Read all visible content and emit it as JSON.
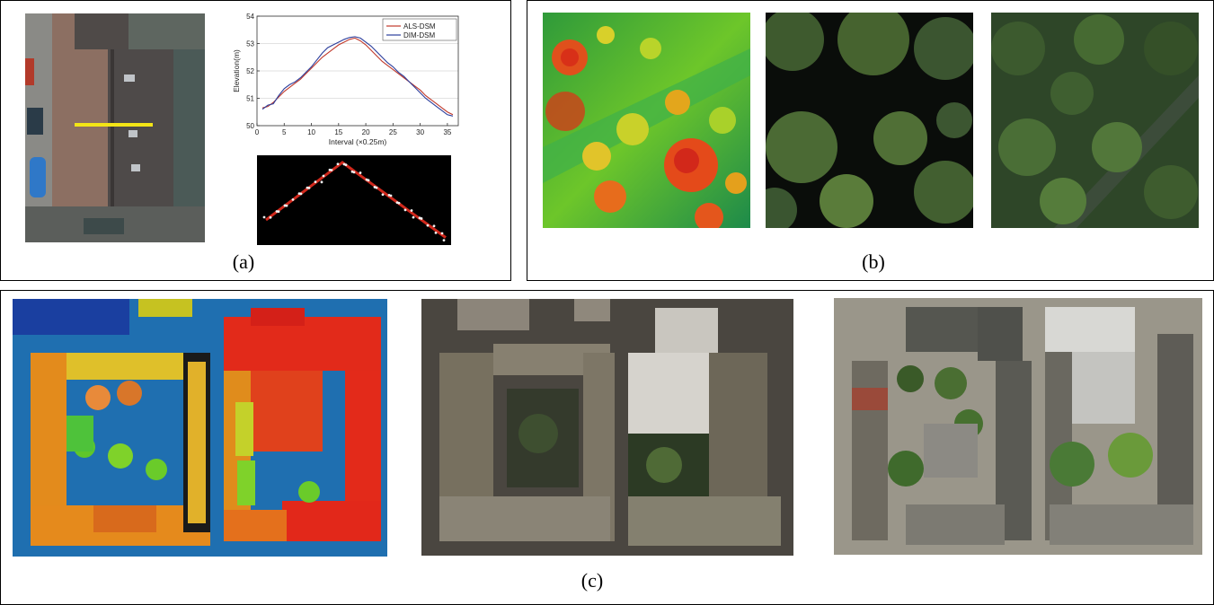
{
  "captions": {
    "a": "(a)",
    "b": "(b)",
    "c": "(c)"
  },
  "chart_data": {
    "type": "line",
    "xlabel": "Interval (×0.25m)",
    "ylabel": "Elevation(m)",
    "xlim": [
      0,
      37
    ],
    "ylim": [
      50,
      54
    ],
    "xticks": [
      0,
      5,
      10,
      15,
      20,
      25,
      30,
      35
    ],
    "yticks": [
      50,
      51,
      52,
      53,
      54
    ],
    "grid": true,
    "legend_position": "top-right",
    "series": [
      {
        "name": "ALS-DSM",
        "color": "#c0392b",
        "x": [
          1,
          2,
          3,
          4,
          5,
          6,
          7,
          8,
          9,
          10,
          11,
          12,
          13,
          14,
          15,
          16,
          17,
          18,
          19,
          20,
          21,
          22,
          23,
          24,
          25,
          26,
          27,
          28,
          29,
          30,
          31,
          32,
          33,
          34,
          35,
          36
        ],
        "y": [
          50.65,
          50.7,
          50.85,
          51.05,
          51.25,
          51.4,
          51.55,
          51.7,
          51.9,
          52.1,
          52.3,
          52.5,
          52.65,
          52.8,
          52.95,
          53.05,
          53.15,
          53.2,
          53.1,
          52.95,
          52.75,
          52.55,
          52.35,
          52.2,
          52.05,
          51.9,
          51.75,
          51.6,
          51.45,
          51.3,
          51.1,
          50.95,
          50.8,
          50.65,
          50.5,
          50.4
        ]
      },
      {
        "name": "DIM-DSM",
        "color": "#2c3e9c",
        "x": [
          1,
          2,
          3,
          4,
          5,
          6,
          7,
          8,
          9,
          10,
          11,
          12,
          13,
          14,
          15,
          16,
          17,
          18,
          19,
          20,
          21,
          22,
          23,
          24,
          25,
          26,
          27,
          28,
          29,
          30,
          31,
          32,
          33,
          34,
          35,
          36
        ],
        "y": [
          50.6,
          50.75,
          50.8,
          51.1,
          51.35,
          51.5,
          51.6,
          51.75,
          51.95,
          52.15,
          52.4,
          52.65,
          52.85,
          52.95,
          53.05,
          53.15,
          53.22,
          53.25,
          53.2,
          53.05,
          52.9,
          52.7,
          52.5,
          52.3,
          52.15,
          51.95,
          51.8,
          51.6,
          51.4,
          51.2,
          51.0,
          50.85,
          50.7,
          50.55,
          50.4,
          50.35
        ]
      }
    ]
  }
}
